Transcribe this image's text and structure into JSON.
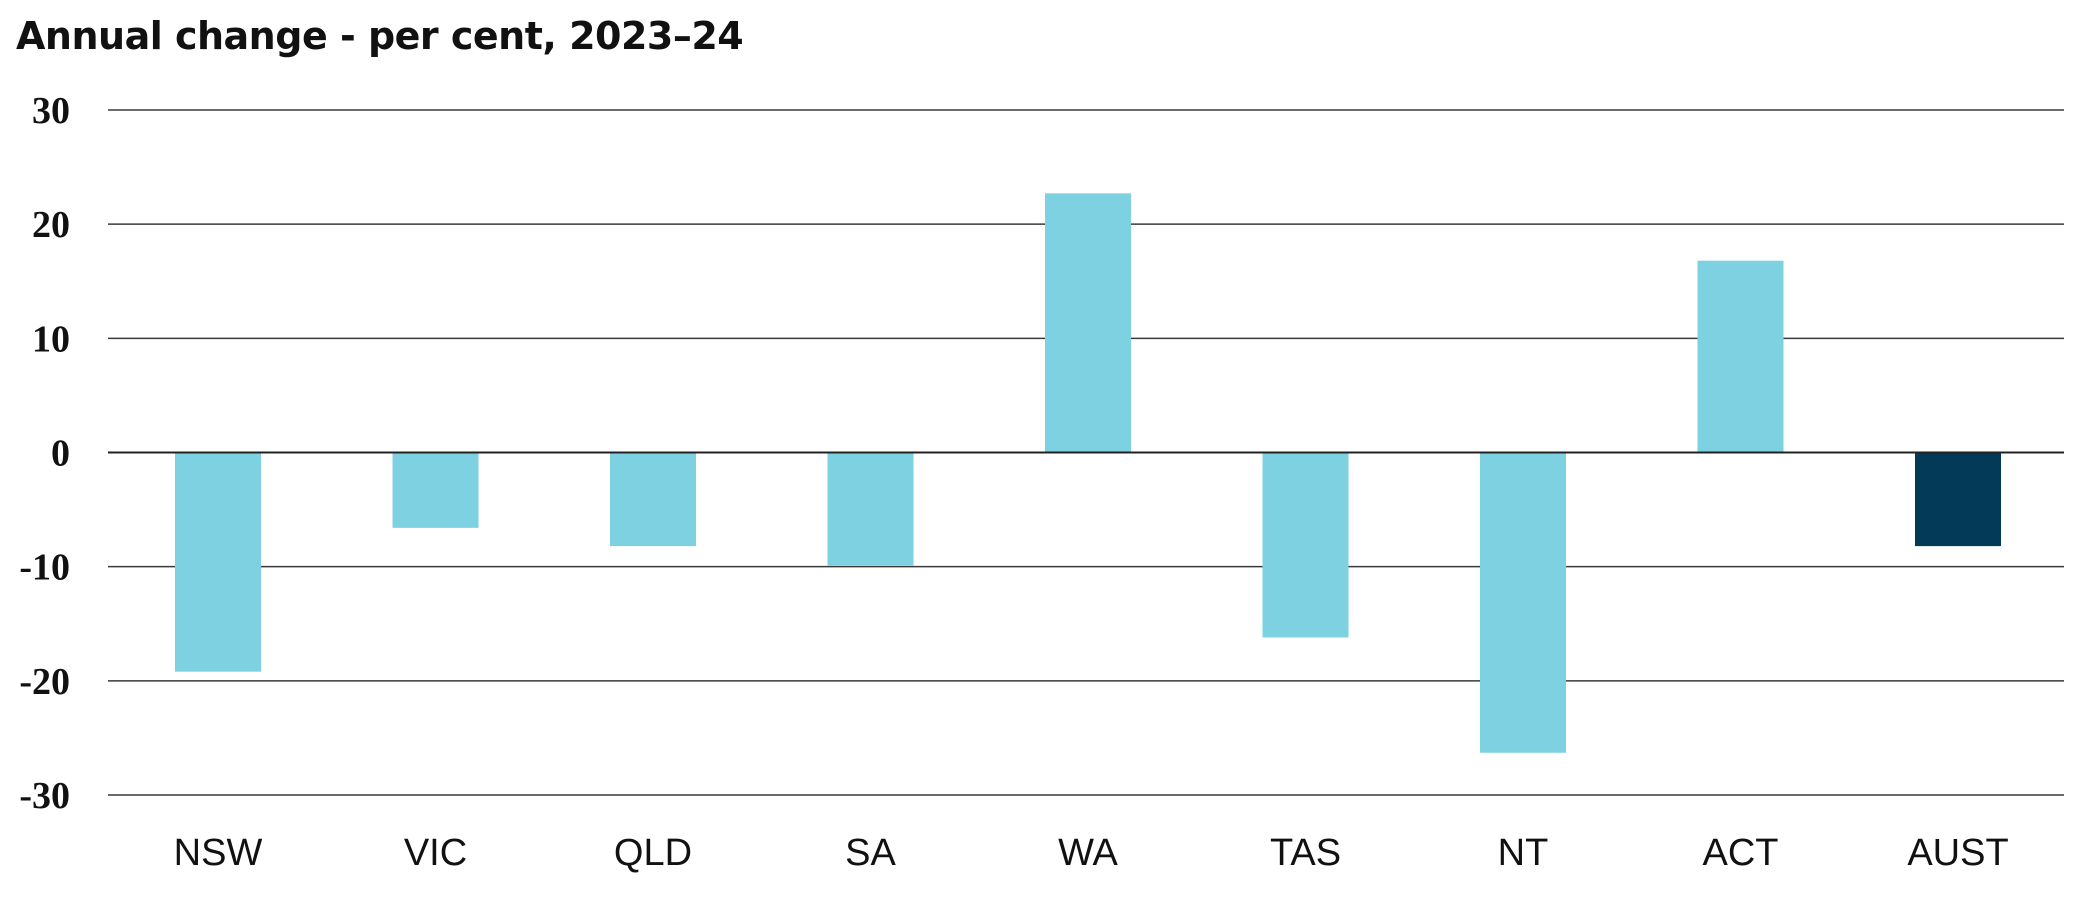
{
  "chart_data": {
    "type": "bar",
    "title": "Annual change - per cent, 2023–24",
    "xlabel": "",
    "ylabel": "",
    "categories": [
      "NSW",
      "VIC",
      "QLD",
      "SA",
      "WA",
      "TAS",
      "NT",
      "ACT",
      "AUST"
    ],
    "values": [
      -19.2,
      -6.6,
      -8.2,
      -9.9,
      22.7,
      -16.2,
      -26.3,
      16.8,
      -8.2
    ],
    "ylim": [
      -30,
      30
    ],
    "yticks": [
      30,
      20,
      10,
      0,
      -10,
      -20,
      -30
    ],
    "grid": true,
    "legend": "none",
    "colors": {
      "state": "#7DD1E0",
      "aust": "#023A58"
    }
  }
}
